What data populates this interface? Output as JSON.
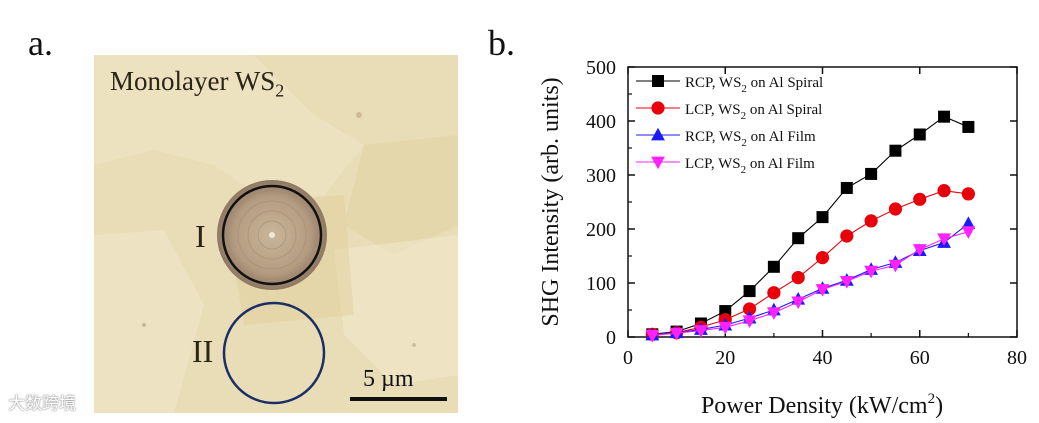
{
  "panel_a": {
    "label": "a.",
    "title_main": "Monolayer WS",
    "title_sub": "2",
    "region_1": "I",
    "region_2": "II",
    "scale_label": "5 µm"
  },
  "panel_b": {
    "label": "b."
  },
  "watermark": "大数跨境",
  "colors": {
    "rcp_spiral": "#000000",
    "lcp_spiral": "#e8000b",
    "rcp_film": "#1a1aff",
    "lcp_film": "#ff22ff",
    "circle_1": "#111111",
    "circle_2": "#1b2f66"
  },
  "chart_data": {
    "type": "line",
    "xlabel_main": "Power Density (kW/cm",
    "xlabel_sup": "2",
    "xlabel_end": ")",
    "ylabel": "SHG Intensity (arb. units)",
    "xlim": [
      0,
      80
    ],
    "ylim": [
      0,
      500
    ],
    "xticks": [
      0,
      20,
      40,
      60,
      80
    ],
    "yticks": [
      0,
      100,
      200,
      300,
      400,
      500
    ],
    "legend_position": "top-left",
    "series": [
      {
        "name": "RCP,  WS",
        "sub": "2",
        "suffix": " on Al Spiral",
        "marker": "square",
        "color": "#000000",
        "x": [
          5,
          10,
          15,
          20,
          25,
          30,
          35,
          40,
          45,
          50,
          55,
          60,
          65,
          70
        ],
        "y": [
          5,
          10,
          25,
          48,
          85,
          130,
          183,
          222,
          276,
          302,
          345,
          375,
          408,
          389
        ]
      },
      {
        "name": "LCP,  WS",
        "sub": "2",
        "suffix": " on Al Spiral",
        "marker": "circle",
        "color": "#e8000b",
        "x": [
          5,
          10,
          15,
          20,
          25,
          30,
          35,
          40,
          45,
          50,
          55,
          60,
          65,
          70
        ],
        "y": [
          5,
          8,
          18,
          32,
          52,
          82,
          110,
          147,
          187,
          215,
          237,
          255,
          271,
          265
        ]
      },
      {
        "name": "RCP,  WS",
        "sub": "2",
        "suffix": " on Al Film",
        "marker": "triangle-up",
        "color": "#1a1aff",
        "x": [
          5,
          10,
          15,
          20,
          25,
          30,
          35,
          40,
          45,
          50,
          55,
          60,
          65,
          70
        ],
        "y": [
          4,
          8,
          14,
          22,
          35,
          50,
          70,
          90,
          105,
          125,
          138,
          160,
          175,
          210
        ]
      },
      {
        "name": "LCP,  WS",
        "sub": "2",
        "suffix": " on Al Film",
        "marker": "triangle-down",
        "color": "#ff22ff",
        "x": [
          5,
          10,
          15,
          20,
          25,
          30,
          35,
          40,
          45,
          50,
          55,
          60,
          65,
          70
        ],
        "y": [
          3,
          7,
          12,
          18,
          30,
          45,
          65,
          88,
          103,
          122,
          133,
          162,
          182,
          195
        ]
      }
    ]
  }
}
